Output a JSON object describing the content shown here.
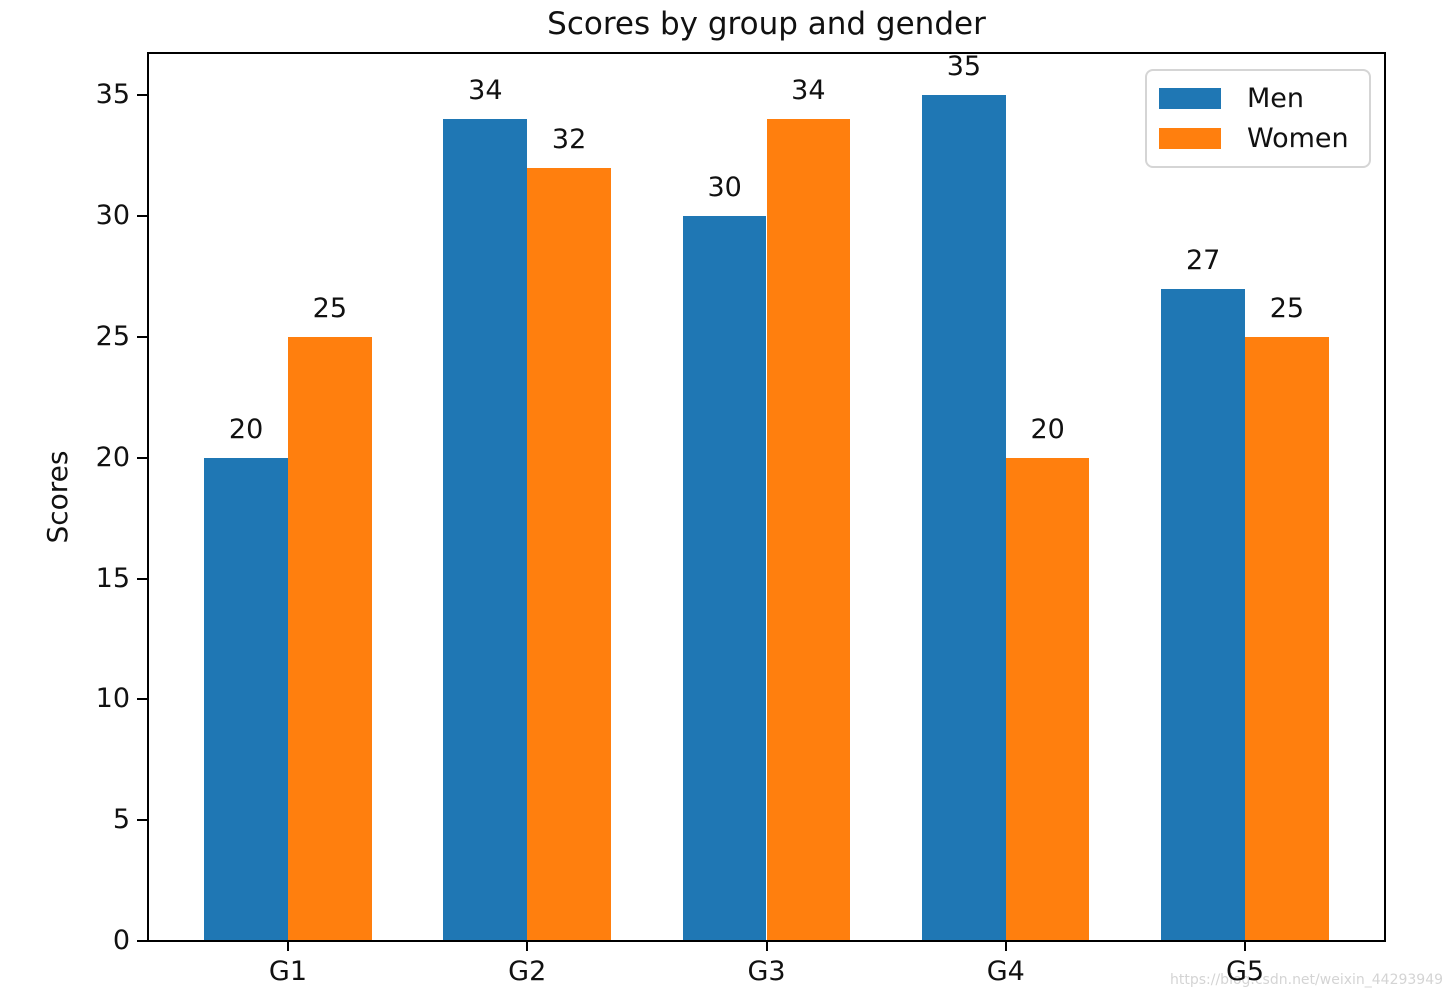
{
  "figure": {
    "watermark": "https://blog.csdn.net/weixin_44293949"
  },
  "chart_data": {
    "type": "bar",
    "title": "Scores by group and gender",
    "categories": [
      "G1",
      "G2",
      "G3",
      "G4",
      "G5"
    ],
    "series": [
      {
        "name": "Men",
        "color": "#1f77b4",
        "values": [
          20,
          34,
          30,
          35,
          27
        ]
      },
      {
        "name": "Women",
        "color": "#ff7f0e",
        "values": [
          25,
          32,
          34,
          20,
          25
        ]
      }
    ],
    "xlabel": "",
    "ylabel": "Scores",
    "yticks": [
      0,
      5,
      10,
      15,
      20,
      25,
      30,
      35
    ],
    "ylim": [
      0,
      36.75
    ],
    "xlim": [
      -0.585,
      4.585
    ],
    "bar_width": 0.35,
    "value_labels": true,
    "grid": false,
    "legend_position": "upper right"
  }
}
